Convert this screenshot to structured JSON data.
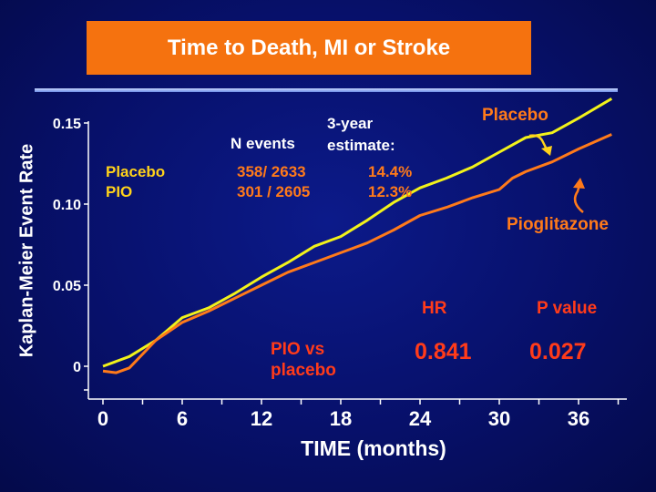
{
  "chart_data": {
    "type": "line",
    "title": "Time to Death, MI or Stroke",
    "xlabel": "TIME (months)",
    "ylabel": "Kaplan-Meier Event Rate",
    "xlim": [
      0,
      39
    ],
    "ylim": [
      -0.02,
      0.15
    ],
    "x_ticks": [
      "0",
      "6",
      "12",
      "18",
      "24",
      "30",
      "36"
    ],
    "y_ticks": [
      "0",
      "0.05",
      "0.10",
      "0.15"
    ],
    "series": [
      {
        "name": "Placebo",
        "color": "#f2f21a",
        "x": [
          0,
          2,
          4,
          6,
          8,
          10,
          12,
          14,
          16,
          18,
          20,
          22,
          24,
          26,
          28,
          30,
          32,
          34,
          36,
          38.5
        ],
        "values": [
          0.0,
          0.006,
          0.016,
          0.03,
          0.036,
          0.045,
          0.055,
          0.064,
          0.074,
          0.08,
          0.09,
          0.101,
          0.11,
          0.116,
          0.123,
          0.132,
          0.141,
          0.144,
          0.153,
          0.165
        ]
      },
      {
        "name": "Pioglitazone",
        "color": "#ff7a1a",
        "x": [
          0,
          1,
          2,
          4,
          6,
          8,
          10,
          12,
          14,
          16,
          18,
          20,
          22,
          24,
          26,
          28,
          30,
          31,
          32,
          34,
          36,
          38.5
        ],
        "values": [
          -0.003,
          -0.004,
          -0.001,
          0.016,
          0.027,
          0.034,
          0.042,
          0.05,
          0.058,
          0.064,
          0.07,
          0.076,
          0.084,
          0.093,
          0.098,
          0.104,
          0.109,
          0.116,
          0.12,
          0.126,
          0.134,
          0.143
        ]
      }
    ]
  },
  "table": {
    "col_n_events": "N events",
    "col_estimate_line1": "3-year",
    "col_estimate_line2": "estimate:",
    "rows": [
      {
        "label": "Placebo",
        "n_events": "358/ 2633",
        "estimate": "14.4%"
      },
      {
        "label": "PIO",
        "n_events": "301 / 2605",
        "estimate": "12.3%"
      }
    ]
  },
  "annotations": {
    "placebo": "Placebo",
    "pioglitazone": "Pioglitazone",
    "hr_label": "HR",
    "p_label": "P value",
    "comparison_line1": "PIO vs",
    "comparison_line2": "placebo",
    "hr_value": "0.841",
    "p_value": "0.027"
  },
  "colors": {
    "background": "#07106a",
    "title_box": "#f5720f",
    "placebo": "#f2f21a",
    "pioglitazone": "#ff7a1a",
    "values": "#ff3b1a"
  }
}
